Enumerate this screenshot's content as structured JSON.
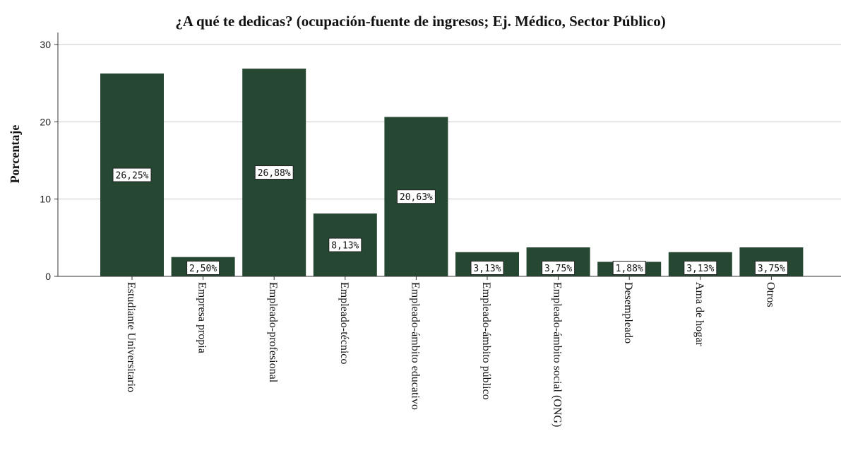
{
  "chart_data": {
    "type": "bar",
    "title": "¿A qué te dedicas? (ocupación-fuente de ingresos; Ej. Médico, Sector Público)",
    "xlabel": "",
    "ylabel": "Porcentaje",
    "ylim": [
      0,
      30
    ],
    "yticks": [
      "0",
      "10",
      "20",
      "30"
    ],
    "grid": true,
    "bar_color": "#264833",
    "categories": [
      "Estudiante Universitario",
      "Empresa propia",
      "Empleado-profesional",
      "Empleado-técnico",
      "Empleado-ámbito educativo",
      "Empleado-ámbito público",
      "Empleado-ámbito social (ONG)",
      "Desempleado",
      "Ama de hogar",
      "Otros"
    ],
    "values": [
      26.25,
      2.5,
      26.88,
      8.13,
      20.63,
      3.13,
      3.75,
      1.88,
      3.13,
      3.75
    ],
    "data_labels": [
      "26,25%",
      "2,50%",
      "26,88%",
      "8,13%",
      "20,63%",
      "3,13%",
      "3,75%",
      "1,88%",
      "3,13%",
      "3,75%"
    ]
  }
}
